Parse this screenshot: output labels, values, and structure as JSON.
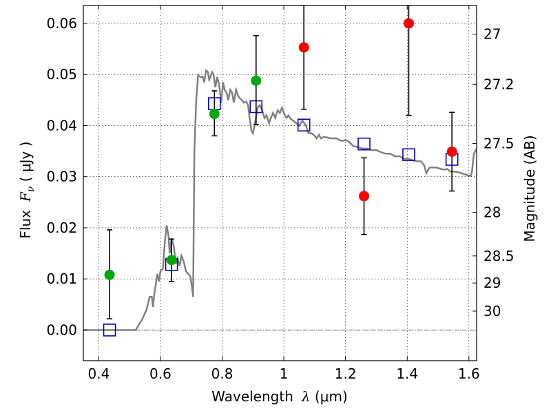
{
  "chart_data": {
    "type": "scatter",
    "xlabel": {
      "prefix": "Wavelength",
      "symbol": "λ",
      "unit": " (μm)"
    },
    "ylabel": {
      "prefix": "Flux",
      "symbol": "F",
      "sub": "ν",
      "unit": " ( μJy )"
    },
    "ylabel_right": "Magnitude (AB)",
    "xlim": [
      0.35,
      1.625
    ],
    "ylim": [
      -0.006,
      0.0635
    ],
    "x_ticks": [
      {
        "v": 0.4,
        "label": "0.4"
      },
      {
        "v": 0.6,
        "label": "0.6"
      },
      {
        "v": 0.8,
        "label": "0.8"
      },
      {
        "v": 1.0,
        "label": "1"
      },
      {
        "v": 1.2,
        "label": "1.2"
      },
      {
        "v": 1.4,
        "label": "1.4"
      },
      {
        "v": 1.6,
        "label": "1.6"
      }
    ],
    "y_ticks": [
      {
        "v": 0.0,
        "label": "0.00"
      },
      {
        "v": 0.01,
        "label": "0.01"
      },
      {
        "v": 0.02,
        "label": "0.02"
      },
      {
        "v": 0.03,
        "label": "0.03"
      },
      {
        "v": 0.04,
        "label": "0.04"
      },
      {
        "v": 0.05,
        "label": "0.05"
      },
      {
        "v": 0.06,
        "label": "0.06"
      }
    ],
    "right_ticks": [
      {
        "label": "27",
        "flux": 0.0579
      },
      {
        "label": "27.2",
        "flux": 0.0481
      },
      {
        "label": "27.5",
        "flux": 0.0365
      },
      {
        "label": "28",
        "flux": 0.023
      },
      {
        "label": "28.5",
        "flux": 0.0145
      },
      {
        "label": "29",
        "flux": 0.0092
      },
      {
        "label": "30",
        "flux": 0.0037
      }
    ],
    "grid": true,
    "colors": {
      "model": "#808080",
      "detected": "#00aa00",
      "upper": "#ff0000",
      "box": "#0000cc"
    },
    "model_spectrum": [
      [
        0.35,
        0.0
      ],
      [
        0.52,
        0.0
      ],
      [
        0.525,
        0.0005
      ],
      [
        0.54,
        0.002
      ],
      [
        0.555,
        0.004
      ],
      [
        0.565,
        0.0065
      ],
      [
        0.572,
        0.0065
      ],
      [
        0.576,
        0.0045
      ],
      [
        0.58,
        0.007
      ],
      [
        0.59,
        0.011
      ],
      [
        0.595,
        0.0095
      ],
      [
        0.6,
        0.0115
      ],
      [
        0.608,
        0.012
      ],
      [
        0.614,
        0.017
      ],
      [
        0.62,
        0.0205
      ],
      [
        0.626,
        0.0185
      ],
      [
        0.63,
        0.015
      ],
      [
        0.636,
        0.018
      ],
      [
        0.643,
        0.0165
      ],
      [
        0.65,
        0.013
      ],
      [
        0.656,
        0.014
      ],
      [
        0.662,
        0.0125
      ],
      [
        0.668,
        0.0145
      ],
      [
        0.675,
        0.0135
      ],
      [
        0.683,
        0.0115
      ],
      [
        0.69,
        0.011
      ],
      [
        0.697,
        0.0105
      ],
      [
        0.702,
        0.0085
      ],
      [
        0.706,
        0.0065
      ],
      [
        0.71,
        0.035
      ],
      [
        0.716,
        0.045
      ],
      [
        0.722,
        0.0498
      ],
      [
        0.73,
        0.0495
      ],
      [
        0.737,
        0.0496
      ],
      [
        0.742,
        0.0485
      ],
      [
        0.748,
        0.0508
      ],
      [
        0.754,
        0.0505
      ],
      [
        0.758,
        0.049
      ],
      [
        0.762,
        0.0495
      ],
      [
        0.767,
        0.0505
      ],
      [
        0.772,
        0.05
      ],
      [
        0.778,
        0.0475
      ],
      [
        0.784,
        0.0495
      ],
      [
        0.79,
        0.048
      ],
      [
        0.797,
        0.0445
      ],
      [
        0.803,
        0.0485
      ],
      [
        0.808,
        0.047
      ],
      [
        0.814,
        0.0465
      ],
      [
        0.82,
        0.045
      ],
      [
        0.826,
        0.047
      ],
      [
        0.832,
        0.0465
      ],
      [
        0.838,
        0.0445
      ],
      [
        0.845,
        0.047
      ],
      [
        0.852,
        0.0458
      ],
      [
        0.858,
        0.0453
      ],
      [
        0.864,
        0.045
      ],
      [
        0.87,
        0.0445
      ],
      [
        0.878,
        0.0447
      ],
      [
        0.884,
        0.044
      ],
      [
        0.889,
        0.0415
      ],
      [
        0.895,
        0.039
      ],
      [
        0.9,
        0.0385
      ],
      [
        0.907,
        0.0405
      ],
      [
        0.915,
        0.0435
      ],
      [
        0.922,
        0.044
      ],
      [
        0.93,
        0.043
      ],
      [
        0.937,
        0.0415
      ],
      [
        0.944,
        0.042
      ],
      [
        0.952,
        0.0405
      ],
      [
        0.958,
        0.0415
      ],
      [
        0.965,
        0.0425
      ],
      [
        0.972,
        0.0415
      ],
      [
        0.98,
        0.043
      ],
      [
        0.987,
        0.0425
      ],
      [
        0.994,
        0.0435
      ],
      [
        1.0,
        0.0425
      ],
      [
        1.008,
        0.0415
      ],
      [
        1.015,
        0.042
      ],
      [
        1.022,
        0.0413
      ],
      [
        1.03,
        0.041
      ],
      [
        1.04,
        0.0405
      ],
      [
        1.05,
        0.04
      ],
      [
        1.06,
        0.041
      ],
      [
        1.072,
        0.04
      ],
      [
        1.08,
        0.0385
      ],
      [
        1.09,
        0.0385
      ],
      [
        1.1,
        0.038
      ],
      [
        1.106,
        0.0375
      ],
      [
        1.114,
        0.0382
      ],
      [
        1.12,
        0.0375
      ],
      [
        1.13,
        0.0378
      ],
      [
        1.14,
        0.0377
      ],
      [
        1.15,
        0.0375
      ],
      [
        1.16,
        0.0375
      ],
      [
        1.17,
        0.0375
      ],
      [
        1.18,
        0.0372
      ],
      [
        1.19,
        0.037
      ],
      [
        1.2,
        0.0372
      ],
      [
        1.212,
        0.0368
      ],
      [
        1.225,
        0.036
      ],
      [
        1.24,
        0.0358
      ],
      [
        1.255,
        0.0355
      ],
      [
        1.27,
        0.0355
      ],
      [
        1.285,
        0.0352
      ],
      [
        1.3,
        0.0352
      ],
      [
        1.315,
        0.0348
      ],
      [
        1.33,
        0.0345
      ],
      [
        1.345,
        0.0345
      ],
      [
        1.36,
        0.034
      ],
      [
        1.375,
        0.034
      ],
      [
        1.39,
        0.0335
      ],
      [
        1.405,
        0.0335
      ],
      [
        1.42,
        0.0332
      ],
      [
        1.435,
        0.033
      ],
      [
        1.445,
        0.033
      ],
      [
        1.455,
        0.0322
      ],
      [
        1.462,
        0.0307
      ],
      [
        1.472,
        0.0318
      ],
      [
        1.48,
        0.0318
      ],
      [
        1.495,
        0.0318
      ],
      [
        1.51,
        0.0315
      ],
      [
        1.52,
        0.0314
      ],
      [
        1.53,
        0.0315
      ],
      [
        1.54,
        0.031
      ],
      [
        1.555,
        0.031
      ],
      [
        1.57,
        0.0308
      ],
      [
        1.585,
        0.0305
      ],
      [
        1.6,
        0.0302
      ],
      [
        1.606,
        0.0302
      ],
      [
        1.61,
        0.031
      ],
      [
        1.616,
        0.0345
      ],
      [
        1.625,
        0.0355
      ]
    ],
    "observed": [
      {
        "x": 0.435,
        "y": 0.0108,
        "err_lo": 0.0022,
        "err_hi": 0.0196,
        "type": "detected"
      },
      {
        "x": 0.636,
        "y": 0.0137,
        "err_lo": 0.0095,
        "err_hi": 0.0178,
        "type": "detected"
      },
      {
        "x": 0.775,
        "y": 0.0423,
        "err_lo": 0.038,
        "err_hi": 0.0468,
        "type": "detected"
      },
      {
        "x": 0.91,
        "y": 0.0488,
        "err_lo": 0.0402,
        "err_hi": 0.0576,
        "type": "detected"
      },
      {
        "x": 1.065,
        "y": 0.0553,
        "err_lo": 0.0432,
        "err_hi": 0.0635,
        "type": "upper"
      },
      {
        "x": 1.26,
        "y": 0.0262,
        "err_lo": 0.0187,
        "err_hi": 0.0337,
        "type": "upper"
      },
      {
        "x": 1.405,
        "y": 0.06,
        "err_lo": 0.042,
        "err_hi": 0.0635,
        "type": "upper"
      },
      {
        "x": 1.545,
        "y": 0.0349,
        "err_lo": 0.0272,
        "err_hi": 0.0426,
        "type": "upper"
      }
    ],
    "model_points": [
      {
        "x": 0.435,
        "y": 0.0
      },
      {
        "x": 0.636,
        "y": 0.0128
      },
      {
        "x": 0.775,
        "y": 0.0443
      },
      {
        "x": 0.91,
        "y": 0.0437
      },
      {
        "x": 1.065,
        "y": 0.0401
      },
      {
        "x": 1.26,
        "y": 0.0364
      },
      {
        "x": 1.405,
        "y": 0.0343
      },
      {
        "x": 1.545,
        "y": 0.0334
      }
    ]
  }
}
